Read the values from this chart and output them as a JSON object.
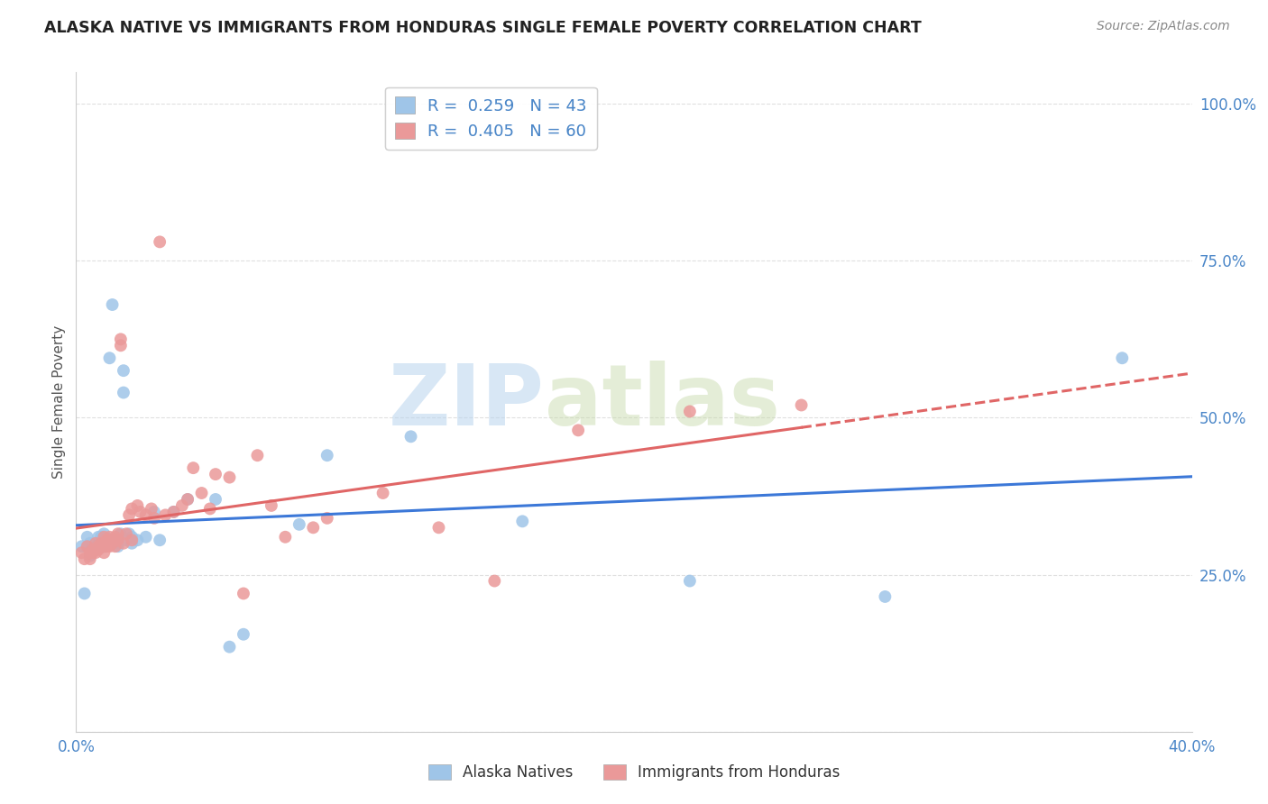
{
  "title": "ALASKA NATIVE VS IMMIGRANTS FROM HONDURAS SINGLE FEMALE POVERTY CORRELATION CHART",
  "source": "Source: ZipAtlas.com",
  "ylabel": "Single Female Poverty",
  "yticks": [
    0.0,
    0.25,
    0.5,
    0.75,
    1.0
  ],
  "ytick_labels": [
    "",
    "25.0%",
    "50.0%",
    "75.0%",
    "100.0%"
  ],
  "xlim": [
    0.0,
    0.4
  ],
  "ylim": [
    0.0,
    1.05
  ],
  "blue_R": 0.259,
  "blue_N": 43,
  "pink_R": 0.405,
  "pink_N": 60,
  "legend_label_blue": "Alaska Natives",
  "legend_label_pink": "Immigrants from Honduras",
  "blue_color": "#9fc5e8",
  "pink_color": "#ea9999",
  "blue_line_color": "#3c78d8",
  "pink_line_color": "#e06666",
  "blue_x": [
    0.002,
    0.003,
    0.004,
    0.004,
    0.005,
    0.005,
    0.006,
    0.007,
    0.007,
    0.008,
    0.009,
    0.009,
    0.01,
    0.01,
    0.011,
    0.012,
    0.013,
    0.014,
    0.015,
    0.015,
    0.016,
    0.017,
    0.017,
    0.018,
    0.019,
    0.02,
    0.02,
    0.022,
    0.025,
    0.028,
    0.03,
    0.035,
    0.04,
    0.05,
    0.055,
    0.06,
    0.08,
    0.09,
    0.12,
    0.16,
    0.22,
    0.29,
    0.375
  ],
  "blue_y": [
    0.295,
    0.22,
    0.295,
    0.31,
    0.28,
    0.3,
    0.29,
    0.29,
    0.295,
    0.31,
    0.295,
    0.31,
    0.295,
    0.315,
    0.305,
    0.595,
    0.68,
    0.305,
    0.3,
    0.295,
    0.315,
    0.54,
    0.575,
    0.305,
    0.315,
    0.31,
    0.3,
    0.305,
    0.31,
    0.35,
    0.305,
    0.35,
    0.37,
    0.37,
    0.135,
    0.155,
    0.33,
    0.44,
    0.47,
    0.335,
    0.24,
    0.215,
    0.595
  ],
  "pink_x": [
    0.002,
    0.003,
    0.004,
    0.005,
    0.005,
    0.006,
    0.006,
    0.007,
    0.007,
    0.008,
    0.008,
    0.009,
    0.009,
    0.01,
    0.01,
    0.01,
    0.011,
    0.011,
    0.012,
    0.012,
    0.013,
    0.013,
    0.014,
    0.014,
    0.015,
    0.015,
    0.016,
    0.016,
    0.017,
    0.018,
    0.019,
    0.02,
    0.02,
    0.022,
    0.023,
    0.025,
    0.027,
    0.028,
    0.03,
    0.032,
    0.035,
    0.038,
    0.04,
    0.042,
    0.045,
    0.048,
    0.05,
    0.055,
    0.06,
    0.065,
    0.07,
    0.075,
    0.085,
    0.09,
    0.11,
    0.13,
    0.15,
    0.18,
    0.22,
    0.26
  ],
  "pink_y": [
    0.285,
    0.275,
    0.295,
    0.275,
    0.285,
    0.285,
    0.29,
    0.285,
    0.3,
    0.29,
    0.295,
    0.295,
    0.3,
    0.285,
    0.295,
    0.31,
    0.295,
    0.305,
    0.295,
    0.31,
    0.3,
    0.305,
    0.31,
    0.295,
    0.305,
    0.315,
    0.615,
    0.625,
    0.3,
    0.315,
    0.345,
    0.355,
    0.305,
    0.36,
    0.35,
    0.345,
    0.355,
    0.34,
    0.78,
    0.345,
    0.35,
    0.36,
    0.37,
    0.42,
    0.38,
    0.355,
    0.41,
    0.405,
    0.22,
    0.44,
    0.36,
    0.31,
    0.325,
    0.34,
    0.38,
    0.325,
    0.24,
    0.48,
    0.51,
    0.52
  ],
  "watermark_zip": "ZIP",
  "watermark_atlas": "atlas",
  "background_color": "#ffffff",
  "grid_color": "#e0e0e0"
}
